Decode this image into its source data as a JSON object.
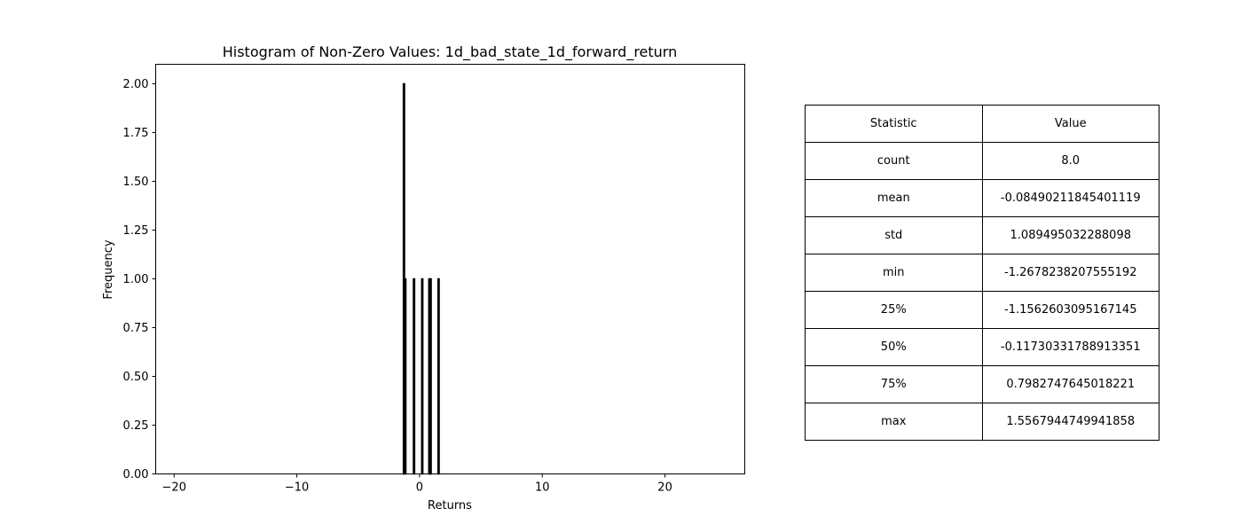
{
  "chart_data": {
    "type": "bar",
    "title": "Histogram of Non-Zero Values: 1d_bad_state_1d_forward_return",
    "xlabel": "Returns",
    "ylabel": "Frequency",
    "xlim": [
      -21.5,
      26.5
    ],
    "ylim": [
      0,
      2.1
    ],
    "x_ticks": [
      -20,
      -10,
      0,
      10,
      20
    ],
    "x_tick_labels": [
      "−20",
      "−10",
      "0",
      "10",
      "20"
    ],
    "y_ticks": [
      0.0,
      0.25,
      0.5,
      0.75,
      1.0,
      1.25,
      1.5,
      1.75,
      2.0
    ],
    "y_tick_labels": [
      "0.00",
      "0.25",
      "0.50",
      "0.75",
      "1.00",
      "1.25",
      "1.50",
      "1.75",
      "2.00"
    ],
    "grid": false,
    "bin_width": 0.1,
    "bars": [
      {
        "x": -1.27,
        "count": 2
      },
      {
        "x": -1.16,
        "count": 1
      },
      {
        "x": -0.45,
        "count": 1
      },
      {
        "x": 0.22,
        "count": 1
      },
      {
        "x": 0.8,
        "count": 1
      },
      {
        "x": 0.9,
        "count": 1
      },
      {
        "x": 1.55,
        "count": 1
      }
    ]
  },
  "table": {
    "header": [
      "Statistic",
      "Value"
    ],
    "rows": [
      [
        "count",
        "8.0"
      ],
      [
        "mean",
        "-0.08490211845401119"
      ],
      [
        "std",
        "1.089495032288098"
      ],
      [
        "min",
        "-1.2678238207555192"
      ],
      [
        "25%",
        "-1.1562603095167145"
      ],
      [
        "50%",
        "-0.11730331788913351"
      ],
      [
        "75%",
        "0.7982747645018221"
      ],
      [
        "max",
        "1.5567944749941858"
      ]
    ]
  }
}
